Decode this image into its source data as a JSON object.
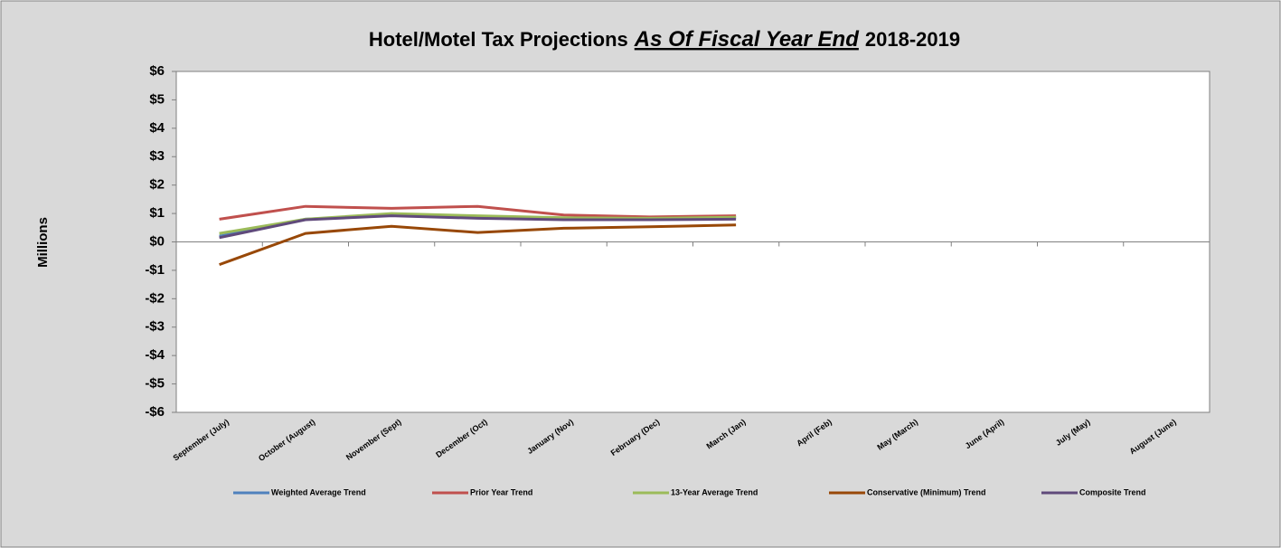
{
  "chart_data": {
    "type": "line",
    "title": [
      "Hotel/Motel Tax Projections",
      "As Of Fiscal Year End",
      "2018-2019"
    ],
    "y_axis_label": "Millions",
    "categories": [
      "September (July)",
      "October (August)",
      "November (Sept)",
      "December (Oct)",
      "January (Nov)",
      "February (Dec)",
      "March (Jan)",
      "April (Feb)",
      "May (March)",
      "June (April)",
      "July (May)",
      "August (June)"
    ],
    "series": [
      {
        "name": "Weighted Average Trend",
        "color": "#4f81bd",
        "values": [
          0.2,
          0.8,
          0.95,
          0.88,
          0.83,
          0.82,
          0.85,
          null,
          null,
          null,
          null,
          null
        ]
      },
      {
        "name": "Prior Year Trend",
        "color": "#c0504d",
        "values": [
          0.8,
          1.25,
          1.18,
          1.25,
          0.95,
          0.88,
          0.92,
          null,
          null,
          null,
          null,
          null
        ]
      },
      {
        "name": "13-Year Average Trend",
        "color": "#9bbb59",
        "values": [
          0.3,
          0.8,
          1.0,
          0.92,
          0.85,
          0.83,
          0.87,
          null,
          null,
          null,
          null,
          null
        ]
      },
      {
        "name": "Conservative (Minimum) Trend",
        "color": "#984807",
        "values": [
          -0.8,
          0.3,
          0.55,
          0.33,
          0.48,
          0.53,
          0.6,
          null,
          null,
          null,
          null,
          null
        ]
      },
      {
        "name": "Composite Trend",
        "color": "#604a7b",
        "values": [
          0.15,
          0.78,
          0.92,
          0.83,
          0.78,
          0.78,
          0.8,
          null,
          null,
          null,
          null,
          null
        ]
      }
    ],
    "ylim": [
      -6,
      6
    ],
    "yticks": [
      {
        "value": -6,
        "label": "-$6"
      },
      {
        "value": -5,
        "label": "-$5"
      },
      {
        "value": -4,
        "label": "-$4"
      },
      {
        "value": -3,
        "label": "-$3"
      },
      {
        "value": -2,
        "label": "-$2"
      },
      {
        "value": -1,
        "label": "-$1"
      },
      {
        "value": 0,
        "label": "$0"
      },
      {
        "value": 1,
        "label": "$1"
      },
      {
        "value": 2,
        "label": "$2"
      },
      {
        "value": 3,
        "label": "$3"
      },
      {
        "value": 4,
        "label": "$4"
      },
      {
        "value": 5,
        "label": "$5"
      },
      {
        "value": 6,
        "label": "$6"
      }
    ],
    "grid": false,
    "legend": "bottom"
  }
}
